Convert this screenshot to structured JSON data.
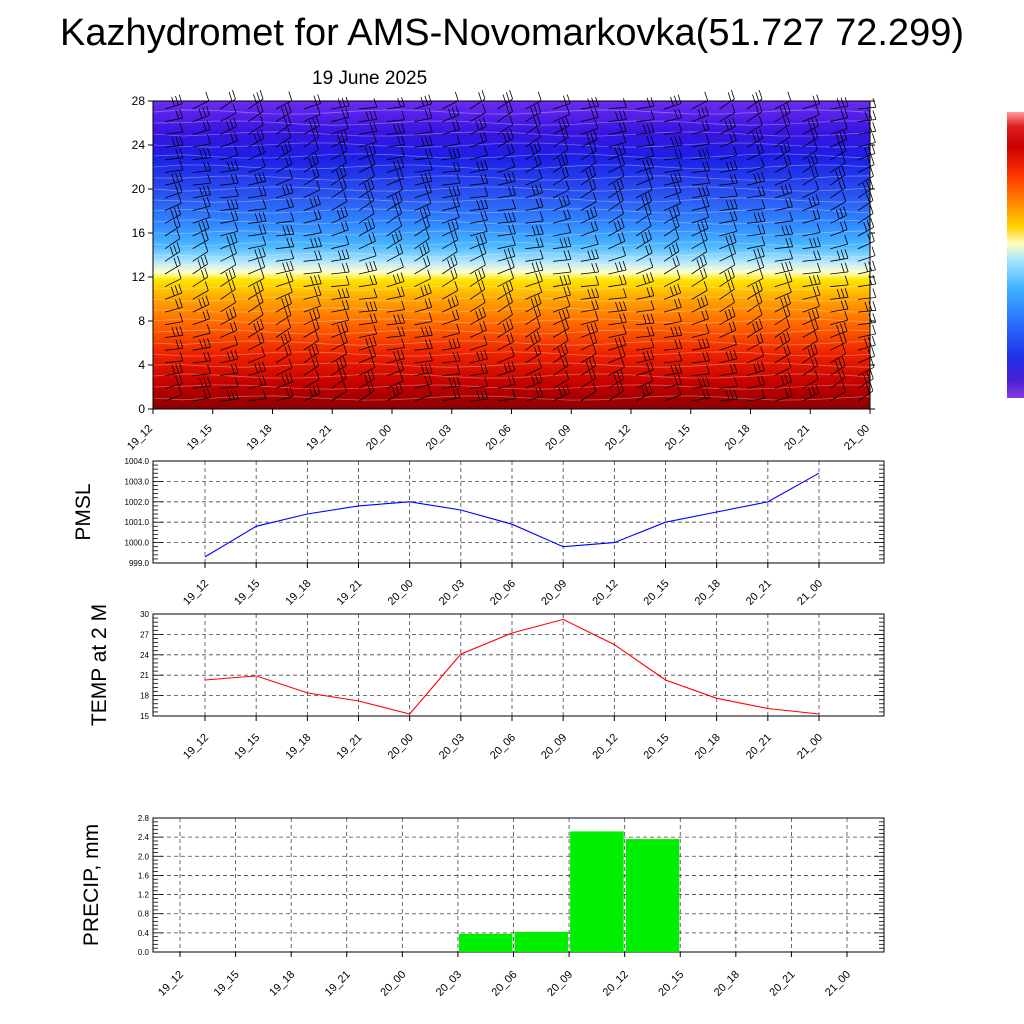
{
  "title": "Kazhydromet for AMS-Novomarkovka(51.727 72.299)",
  "subtitle": "19 June 2025",
  "colors": {
    "pmsl_line": "#0000ff",
    "temp_line": "#ff0000",
    "precip_bar": "#00ee00",
    "colorbar": [
      "#7b0000",
      "#b40000",
      "#e60000",
      "#ff3300",
      "#ff7a00",
      "#ffb000",
      "#ffd800",
      "#ffffc8",
      "#9fe0ff",
      "#3fb5ff",
      "#2a6dff",
      "#1f2fe6",
      "#4a1fd4",
      "#9a4ad6",
      "#ff9090",
      "#e02020"
    ]
  },
  "chart_data": [
    {
      "type": "heatmap",
      "name": "cross-section",
      "categories": [
        "19_12",
        "19_15",
        "19_18",
        "19_21",
        "20_00",
        "20_03",
        "20_06",
        "20_09",
        "20_12",
        "20_15",
        "20_18",
        "20_21",
        "21_00"
      ],
      "yticks": [
        0,
        4,
        8,
        12,
        16,
        20,
        24,
        28
      ],
      "ylim": [
        0,
        28
      ],
      "grid": false
    },
    {
      "type": "line",
      "name": "pmsl",
      "ylabel": "PMSL",
      "categories": [
        "19_12",
        "19_15",
        "19_18",
        "19_21",
        "20_00",
        "20_03",
        "20_06",
        "20_09",
        "20_12",
        "20_15",
        "20_18",
        "20_21",
        "21_00"
      ],
      "values": [
        999.3,
        1000.8,
        1001.4,
        1001.8,
        1002.0,
        1001.6,
        1000.9,
        999.8,
        1000.0,
        1001.0,
        1001.5,
        1002.0,
        1003.4
      ],
      "yticks": [
        "999.0",
        "1000.0",
        "1001.0",
        "1002.0",
        "1003.0",
        "1004.0"
      ],
      "ylim": [
        999,
        1004
      ],
      "grid": true
    },
    {
      "type": "line",
      "name": "temp",
      "ylabel": "TEMP at 2 M",
      "categories": [
        "19_12",
        "19_15",
        "19_18",
        "19_21",
        "20_00",
        "20_03",
        "20_06",
        "20_09",
        "20_12",
        "20_15",
        "20_18",
        "20_21",
        "21_00"
      ],
      "values": [
        20.3,
        20.9,
        18.4,
        17.2,
        15.3,
        24.1,
        27.2,
        29.2,
        25.5,
        20.3,
        17.6,
        16.1,
        15.3
      ],
      "yticks": [
        "15",
        "18",
        "21",
        "24",
        "27",
        "30"
      ],
      "ylim": [
        15,
        30
      ],
      "grid": true
    },
    {
      "type": "bar",
      "name": "precip",
      "ylabel": "PRECIP, mm",
      "categories": [
        "19_12",
        "19_15",
        "19_18",
        "19_21",
        "20_00",
        "20_03",
        "20_06",
        "20_09",
        "20_12",
        "20_15",
        "20_18",
        "20_21",
        "21_00"
      ],
      "bars": [
        {
          "from": "20_03",
          "to": "20_06",
          "value": 0.38
        },
        {
          "from": "20_06",
          "to": "20_09",
          "value": 0.42
        },
        {
          "from": "20_09",
          "to": "20_12",
          "value": 2.52
        },
        {
          "from": "20_12",
          "to": "20_15",
          "value": 2.36
        }
      ],
      "yticks": [
        "0.0",
        "0.4",
        "0.8",
        "1.2",
        "1.6",
        "2.0",
        "2.4",
        "2.8"
      ],
      "ylim": [
        0,
        2.8
      ],
      "grid": true
    }
  ]
}
